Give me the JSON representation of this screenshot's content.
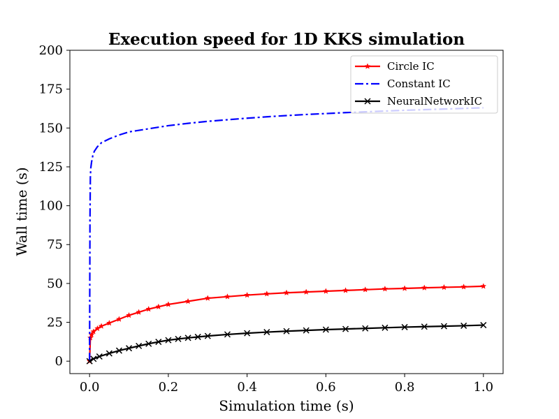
{
  "chart_data": {
    "type": "line",
    "title": "Execution speed for 1D KKS simulation",
    "xlabel": "Simulation time (s)",
    "ylabel": "Wall time (s)",
    "xlim": [
      -0.05,
      1.05
    ],
    "ylim": [
      -8,
      200
    ],
    "xticks": [
      0.0,
      0.2,
      0.4,
      0.6,
      0.8,
      1.0
    ],
    "xtick_labels": [
      "0.0",
      "0.2",
      "0.4",
      "0.6",
      "0.8",
      "1.0"
    ],
    "yticks": [
      0,
      25,
      50,
      75,
      100,
      125,
      150,
      175,
      200
    ],
    "ytick_labels": [
      "0",
      "25",
      "50",
      "75",
      "100",
      "125",
      "150",
      "175",
      "200"
    ],
    "grid": false,
    "legend_position": "top-right",
    "series": [
      {
        "name": "Circle IC",
        "color": "#ff0000",
        "line_style": "solid",
        "marker": "star",
        "x": [
          0,
          0.002,
          0.005,
          0.01,
          0.02,
          0.03,
          0.05,
          0.075,
          0.1,
          0.125,
          0.15,
          0.175,
          0.2,
          0.25,
          0.3,
          0.35,
          0.4,
          0.45,
          0.5,
          0.55,
          0.6,
          0.65,
          0.7,
          0.75,
          0.8,
          0.85,
          0.9,
          0.95,
          1.0
        ],
        "values": [
          0,
          15,
          17,
          19,
          21,
          22.5,
          24.5,
          27,
          29.5,
          31.5,
          33.5,
          35,
          36.5,
          38.5,
          40.5,
          41.5,
          42.5,
          43.3,
          44,
          44.5,
          45,
          45.5,
          46,
          46.5,
          46.8,
          47.2,
          47.5,
          47.8,
          48.2
        ]
      },
      {
        "name": "Constant IC",
        "color": "#0000ff",
        "line_style": "dashdot",
        "marker": "none",
        "x": [
          0,
          0.001,
          0.002,
          0.003,
          0.005,
          0.008,
          0.012,
          0.02,
          0.03,
          0.05,
          0.075,
          0.1,
          0.15,
          0.2,
          0.25,
          0.3,
          0.35,
          0.4,
          0.45,
          0.5,
          0.55,
          0.6,
          0.65,
          0.7,
          0.75,
          0.8,
          0.85,
          0.9,
          0.95,
          1.0
        ],
        "values": [
          0,
          90,
          118,
          124,
          128,
          132,
          135,
          138,
          140.5,
          143,
          145.5,
          147.5,
          149.5,
          151.5,
          153,
          154.3,
          155.3,
          156.3,
          157.2,
          158,
          158.7,
          159.3,
          159.9,
          160.4,
          160.9,
          161.4,
          161.8,
          162.2,
          162.6,
          163
        ]
      },
      {
        "name": "NeuralNetworkIC",
        "color": "#000000",
        "line_style": "solid",
        "marker": "x",
        "x": [
          0,
          0.01,
          0.025,
          0.05,
          0.075,
          0.1,
          0.125,
          0.15,
          0.175,
          0.2,
          0.225,
          0.25,
          0.275,
          0.3,
          0.35,
          0.4,
          0.45,
          0.5,
          0.55,
          0.6,
          0.65,
          0.7,
          0.75,
          0.8,
          0.85,
          0.9,
          0.95,
          1.0
        ],
        "values": [
          0,
          1.5,
          3,
          5,
          6.8,
          8.3,
          9.8,
          11.2,
          12.4,
          13.5,
          14.3,
          15,
          15.6,
          16.2,
          17.2,
          18,
          18.7,
          19.3,
          19.8,
          20.3,
          20.7,
          21.1,
          21.5,
          21.9,
          22.2,
          22.5,
          22.8,
          23.2
        ]
      }
    ]
  }
}
